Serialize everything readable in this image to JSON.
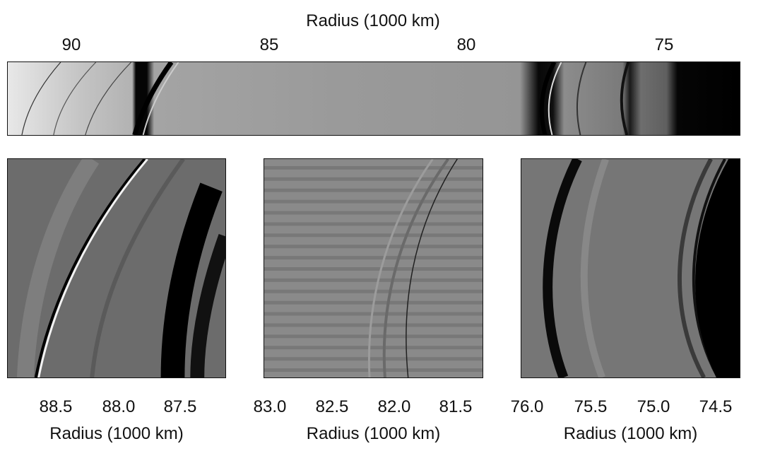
{
  "top": {
    "axis_title": "Radius (1000 km)",
    "ticks": [
      "90",
      "85",
      "80",
      "75"
    ]
  },
  "panels": [
    {
      "ticks": [
        "88.5",
        "88.0",
        "87.5"
      ],
      "axis_title": "Radius (1000 km)"
    },
    {
      "ticks": [
        "83.0",
        "82.5",
        "82.0",
        "81.5"
      ],
      "axis_title": "Radius (1000 km)"
    },
    {
      "ticks": [
        "76.0",
        "75.5",
        "75.0",
        "74.5"
      ],
      "axis_title": "Radius (1000 km)"
    }
  ]
}
